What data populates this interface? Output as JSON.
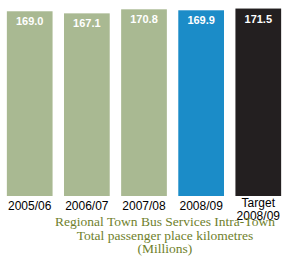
{
  "chart_data": {
    "type": "bar",
    "title": "Regional Town Bus Services Intra-Town\nTotal passenger place kilometres\n(Millions)",
    "categories": [
      "2005/06",
      "2006/07",
      "2007/08",
      "2008/09",
      "Target\n2008/09"
    ],
    "values": [
      169.0,
      167.1,
      170.8,
      169.9,
      171.5
    ],
    "value_labels": [
      "169.0",
      "167.1",
      "170.8",
      "169.9",
      "171.5"
    ],
    "colors": [
      "#a9b992",
      "#a9b992",
      "#a9b992",
      "#1b8cc8",
      "#231f20"
    ],
    "ylim": [
      0,
      172
    ],
    "data_labels": true,
    "tick_labels": "x",
    "grid": false
  }
}
